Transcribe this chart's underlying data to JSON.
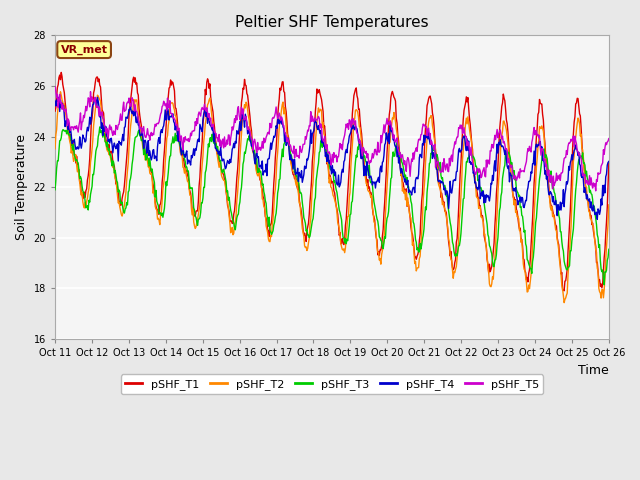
{
  "title": "Peltier SHF Temperatures",
  "xlabel": "Time",
  "ylabel": "Soil Temperature",
  "ylim": [
    16,
    28
  ],
  "yticks": [
    16,
    18,
    20,
    22,
    24,
    26,
    28
  ],
  "annotation_label": "VR_met",
  "legend_labels": [
    "pSHF_T1",
    "pSHF_T2",
    "pSHF_T3",
    "pSHF_T4",
    "pSHF_T5"
  ],
  "line_colors": [
    "#dd0000",
    "#ff8800",
    "#00cc00",
    "#0000cc",
    "#cc00cc"
  ],
  "xtick_labels": [
    "Oct 11",
    "Oct 12",
    "Oct 13",
    "Oct 14",
    "Oct 15",
    "Oct 16",
    "Oct 17",
    "Oct 18",
    "Oct 19",
    "Oct 20",
    "Oct 21",
    "Oct 22",
    "Oct 23",
    "Oct 24",
    "Oct 25",
    "Oct 26"
  ],
  "n_points": 720,
  "figure_bg": "#e8e8e8",
  "plot_bg": "#f5f5f5",
  "grid_color": "#d0d0d0",
  "title_fontsize": 11,
  "tick_fontsize": 7,
  "axis_label_fontsize": 9
}
